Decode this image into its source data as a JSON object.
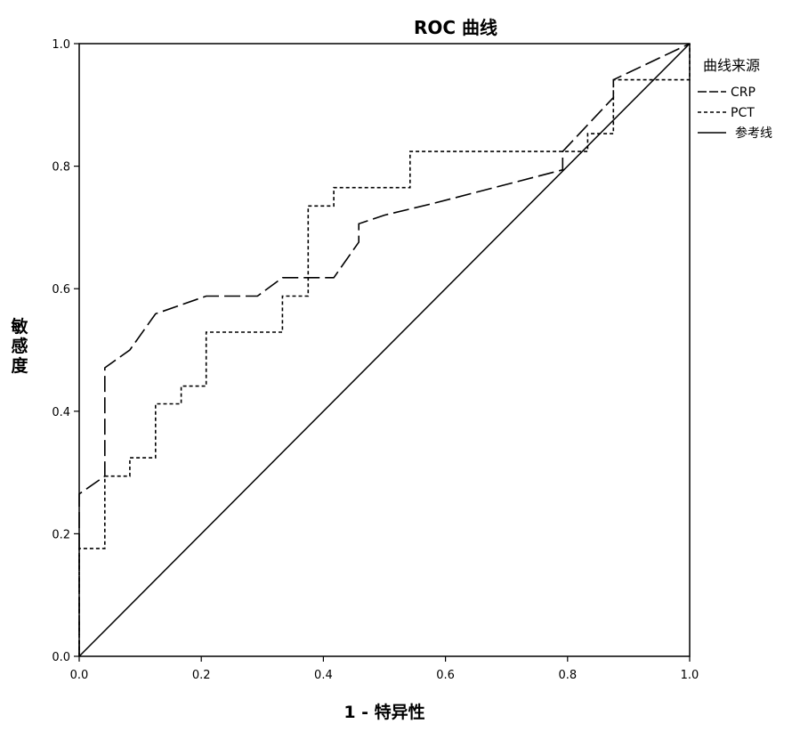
{
  "chart_data": {
    "type": "line",
    "title": "ROC 曲线",
    "xlabel": "1 - 特异性",
    "ylabel": "敏感度",
    "xlim": [
      0,
      1
    ],
    "ylim": [
      0,
      1
    ],
    "xticks": [
      "0.0",
      "0.2",
      "0.4",
      "0.6",
      "0.8",
      "1.0"
    ],
    "yticks": [
      "0.0",
      "0.2",
      "0.4",
      "0.6",
      "0.8",
      "1.0"
    ],
    "grid": false,
    "legend": {
      "title": "曲线来源",
      "placement": "right"
    },
    "series": [
      {
        "name": "CRP",
        "style": "long-dash",
        "x": [
          0.0,
          0.0,
          0.042,
          0.042,
          0.083,
          0.125,
          0.208,
          0.292,
          0.333,
          0.417,
          0.458,
          0.458,
          0.5,
          0.583,
          0.792,
          0.792,
          0.875,
          0.875,
          1.0
        ],
        "y": [
          0.0,
          0.265,
          0.294,
          0.471,
          0.5,
          0.559,
          0.588,
          0.588,
          0.618,
          0.618,
          0.676,
          0.706,
          0.72,
          0.74,
          0.794,
          0.824,
          0.912,
          0.941,
          1.0
        ]
      },
      {
        "name": "PCT",
        "style": "short-dash",
        "x": [
          0.0,
          0.0,
          0.042,
          0.042,
          0.083,
          0.083,
          0.125,
          0.125,
          0.167,
          0.167,
          0.208,
          0.208,
          0.333,
          0.333,
          0.375,
          0.375,
          0.417,
          0.417,
          0.542,
          0.542,
          0.792,
          0.833,
          0.833,
          0.875,
          0.875,
          1.0,
          1.0
        ],
        "y": [
          0.0,
          0.176,
          0.176,
          0.294,
          0.294,
          0.324,
          0.324,
          0.412,
          0.412,
          0.441,
          0.441,
          0.529,
          0.529,
          0.588,
          0.588,
          0.735,
          0.735,
          0.765,
          0.765,
          0.824,
          0.824,
          0.824,
          0.853,
          0.853,
          0.941,
          0.941,
          1.0
        ]
      },
      {
        "name": "参考线",
        "style": "solid",
        "x": [
          0,
          1
        ],
        "y": [
          0,
          1
        ]
      }
    ]
  }
}
